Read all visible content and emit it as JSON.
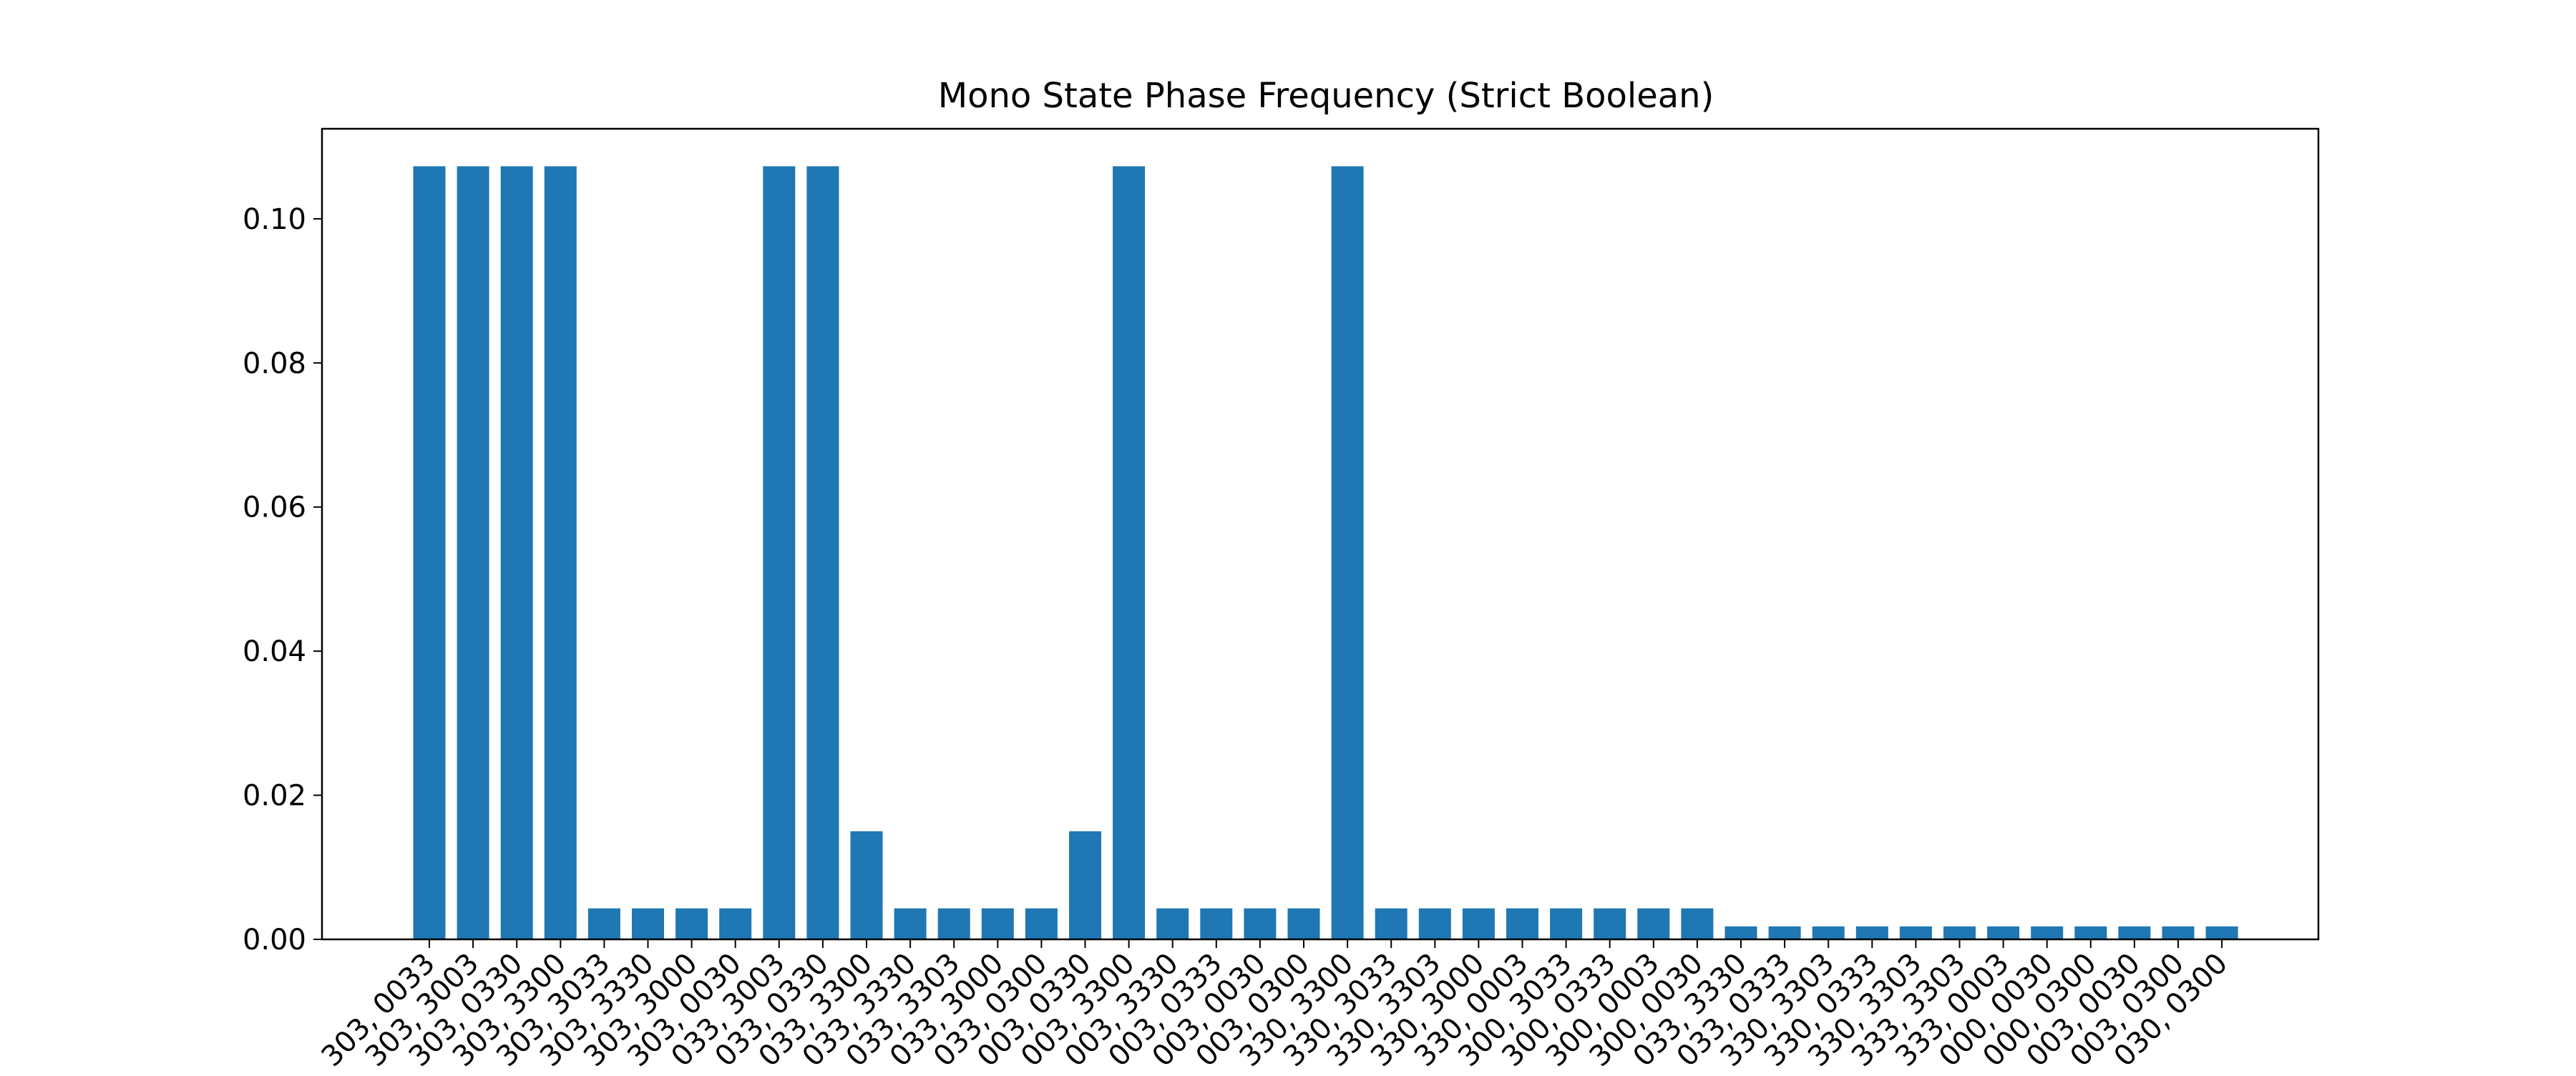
{
  "chart_data": {
    "type": "bar",
    "title": "Mono State Phase Frequency (Strict Boolean)",
    "xlabel": "",
    "ylabel": "",
    "ylim": [
      0,
      0.1125
    ],
    "yticks": [
      "0.00",
      "0.02",
      "0.04",
      "0.06",
      "0.08",
      "0.10"
    ],
    "ytick_values": [
      0,
      0.02,
      0.04,
      0.06,
      0.08,
      0.1
    ],
    "grid": false,
    "bar_color": "#1f77b4",
    "categories": [
      "303, 0033",
      "303, 3003",
      "303, 0330",
      "303, 3300",
      "303, 3033",
      "303, 3330",
      "303, 3000",
      "303, 0030",
      "033, 3003",
      "033, 0330",
      "033, 3300",
      "033, 3330",
      "033, 3303",
      "033, 3000",
      "033, 0300",
      "003, 0330",
      "003, 3300",
      "003, 3330",
      "003, 0333",
      "003, 0030",
      "003, 0300",
      "330, 3300",
      "330, 3033",
      "330, 3303",
      "330, 3000",
      "330, 0003",
      "300, 3033",
      "300, 0333",
      "300, 0003",
      "300, 0030",
      "033, 3330",
      "033, 0333",
      "330, 3303",
      "330, 0333",
      "330, 3303",
      "333, 3303",
      "333, 0003",
      "000, 0030",
      "000, 0300",
      "003, 0030",
      "003, 0300",
      "030, 0300"
    ],
    "values": [
      0.1073,
      0.1073,
      0.1073,
      0.1073,
      0.0043,
      0.0043,
      0.0043,
      0.0043,
      0.1073,
      0.1073,
      0.015,
      0.0043,
      0.0043,
      0.0043,
      0.0043,
      0.015,
      0.1073,
      0.0043,
      0.0043,
      0.0043,
      0.0043,
      0.1073,
      0.0043,
      0.0043,
      0.0043,
      0.0043,
      0.0043,
      0.0043,
      0.0043,
      0.0043,
      0.0018,
      0.0018,
      0.0018,
      0.0018,
      0.0018,
      0.0018,
      0.0018,
      0.0018,
      0.0018,
      0.0018,
      0.0018,
      0.0018
    ]
  }
}
